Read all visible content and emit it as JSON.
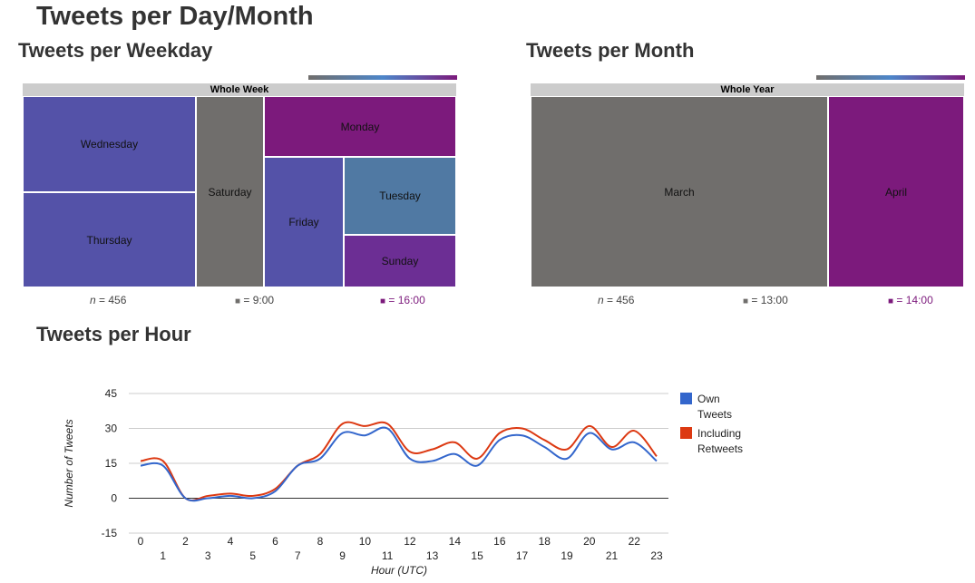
{
  "page_title": "Tweets per Day/Month",
  "weekday": {
    "title": "Tweets per Weekday",
    "header": "Whole Week",
    "cells": [
      {
        "label": "Wednesday",
        "color": "#5452a8"
      },
      {
        "label": "Thursday",
        "color": "#5452a8"
      },
      {
        "label": "Saturday",
        "color": "#706e6c"
      },
      {
        "label": "Monday",
        "color": "#7c1a7c"
      },
      {
        "label": "Friday",
        "color": "#5452a8"
      },
      {
        "label": "Tuesday",
        "color": "#5079a3"
      },
      {
        "label": "Sunday",
        "color": "#6c2e94"
      }
    ],
    "n_label": "= 456",
    "min_label": "= 9:00",
    "max_label": "= 16:00"
  },
  "month": {
    "title": "Tweets per Month",
    "header": "Whole Year",
    "cells": [
      {
        "label": "March",
        "color": "#706e6c"
      },
      {
        "label": "April",
        "color": "#7c1a7c"
      }
    ],
    "n_label": "= 456",
    "min_label": "= 13:00",
    "max_label": "= 14:00"
  },
  "colors": {
    "min": "#706e6c",
    "mid": "#4d86c9",
    "max": "#7c1a7c",
    "own": "#3366cc",
    "retweets": "#dc3912"
  },
  "hour_title": "Tweets per Hour",
  "chart_data": {
    "type": "line",
    "title": "Tweets per Hour",
    "xlabel": "Hour (UTC)",
    "ylabel": "Number of Tweets",
    "x": [
      0,
      1,
      2,
      3,
      4,
      5,
      6,
      7,
      8,
      9,
      10,
      11,
      12,
      13,
      14,
      15,
      16,
      17,
      18,
      19,
      20,
      21,
      22,
      23
    ],
    "series": [
      {
        "name": "Own Tweets",
        "color": "#3366cc",
        "values": [
          14,
          14,
          0,
          0,
          1,
          0,
          3,
          14,
          17,
          28,
          27,
          30,
          17,
          16,
          19,
          14,
          25,
          27,
          22,
          17,
          28,
          21,
          24,
          16
        ]
      },
      {
        "name": "Including Retweets",
        "color": "#dc3912",
        "values": [
          16,
          16,
          0,
          1,
          2,
          1,
          4,
          14,
          19,
          32,
          31,
          32,
          20,
          21,
          24,
          17,
          28,
          30,
          25,
          21,
          31,
          22,
          29,
          18
        ]
      }
    ],
    "ylim": [
      -15,
      45
    ],
    "yticks": [
      -15,
      0,
      15,
      30,
      45
    ],
    "grid": true,
    "legend_position": "right"
  }
}
